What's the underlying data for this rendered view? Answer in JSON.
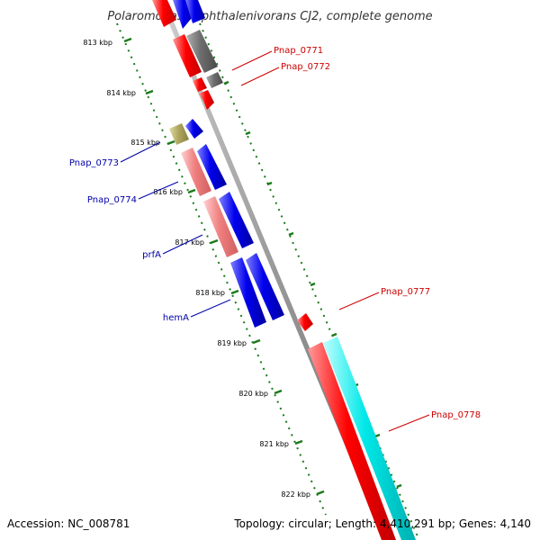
{
  "title": "Polaromonas naphthalenivorans CJ2, complete genome",
  "accession": "Accession: NC_008781",
  "summary": "Topology: circular; Length: 4,410,291 bp; Genes: 4,140",
  "colors": {
    "forward_label": "#cc0000",
    "reverse_label": "#0000aa",
    "scale": "#1a7a1a",
    "backbone": "#999999",
    "red": "#ff0000",
    "pink": "#f08080",
    "blue": "#0000ee",
    "gray": "#6e6e6e",
    "olive": "#b0a860",
    "cyan": "#00e8e8"
  },
  "scale_ticks": [
    "813 kbp",
    "814 kbp",
    "815 kbp",
    "816 kbp",
    "817 kbp",
    "818 kbp",
    "819 kbp",
    "820 kbp",
    "821 kbp",
    "822 kbp"
  ],
  "gene_labels_right": [
    "Pnap_0771",
    "Pnap_0772",
    "Pnap_0777",
    "Pnap_0778"
  ],
  "gene_labels_left": [
    "Pnap_0773",
    "Pnap_0774",
    "prfA",
    "hemA"
  ]
}
